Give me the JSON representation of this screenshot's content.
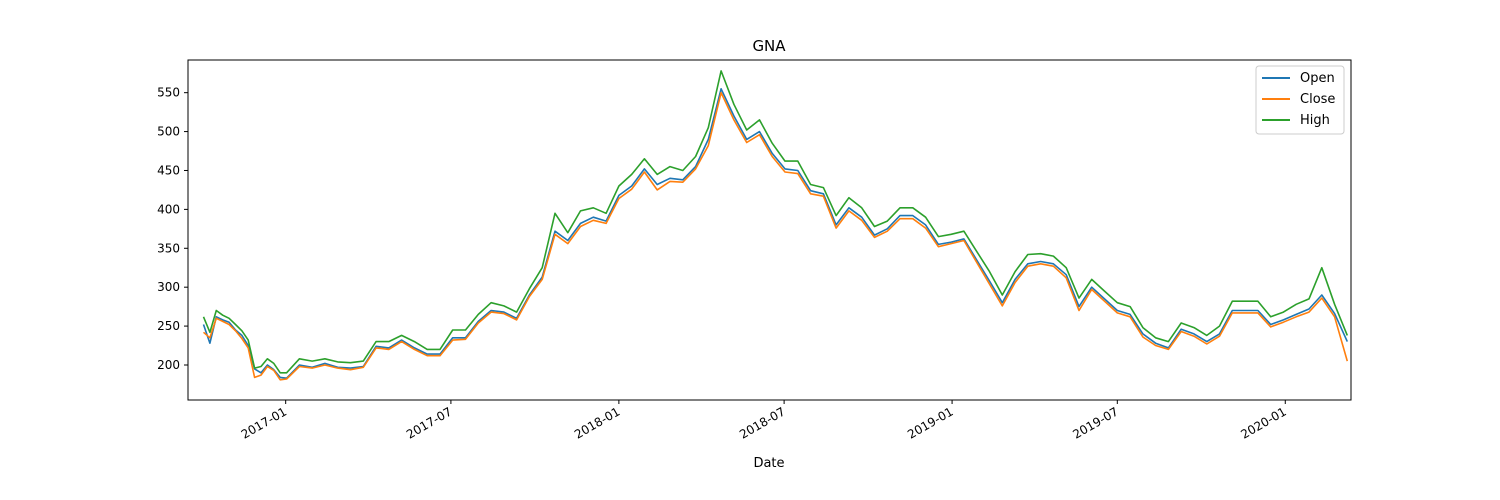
{
  "chart_data": {
    "type": "line",
    "title": "GNA",
    "xlabel": "Date",
    "ylabel": "",
    "x_range": [
      "2016-09-16",
      "2020-03-13"
    ],
    "ylim": [
      155,
      592
    ],
    "grid": false,
    "legend": "top-right",
    "y_ticks": [
      200,
      250,
      300,
      350,
      400,
      450,
      500,
      550
    ],
    "x_ticks": [
      "2017-01",
      "2017-07",
      "2018-01",
      "2018-07",
      "2019-01",
      "2019-07",
      "2020-01"
    ],
    "series": [
      {
        "name": "Open",
        "color": "#1f77b4"
      },
      {
        "name": "Close",
        "color": "#ff7f0e"
      },
      {
        "name": "High",
        "color": "#2ca02c"
      }
    ],
    "x": [
      "2016-10-03",
      "2016-10-10",
      "2016-10-17",
      "2016-10-24",
      "2016-10-31",
      "2016-11-07",
      "2016-11-14",
      "2016-11-21",
      "2016-11-28",
      "2016-12-05",
      "2016-12-12",
      "2016-12-19",
      "2016-12-26",
      "2017-01-02",
      "2017-01-16",
      "2017-01-30",
      "2017-02-13",
      "2017-02-27",
      "2017-03-13",
      "2017-03-27",
      "2017-04-10",
      "2017-04-24",
      "2017-05-08",
      "2017-05-22",
      "2017-06-05",
      "2017-06-19",
      "2017-07-03",
      "2017-07-17",
      "2017-07-31",
      "2017-08-14",
      "2017-08-28",
      "2017-09-11",
      "2017-09-25",
      "2017-10-09",
      "2017-10-23",
      "2017-11-06",
      "2017-11-20",
      "2017-12-04",
      "2017-12-18",
      "2018-01-01",
      "2018-01-15",
      "2018-01-29",
      "2018-02-12",
      "2018-02-26",
      "2018-03-12",
      "2018-03-26",
      "2018-04-09",
      "2018-04-23",
      "2018-05-07",
      "2018-05-21",
      "2018-06-04",
      "2018-06-18",
      "2018-07-02",
      "2018-07-16",
      "2018-07-30",
      "2018-08-13",
      "2018-08-27",
      "2018-09-10",
      "2018-09-24",
      "2018-10-08",
      "2018-10-22",
      "2018-11-05",
      "2018-11-19",
      "2018-12-03",
      "2018-12-17",
      "2018-12-31",
      "2019-01-14",
      "2019-01-28",
      "2019-02-11",
      "2019-02-25",
      "2019-03-11",
      "2019-03-25",
      "2019-04-08",
      "2019-04-22",
      "2019-05-06",
      "2019-05-20",
      "2019-06-03",
      "2019-06-17",
      "2019-07-01",
      "2019-07-15",
      "2019-07-29",
      "2019-08-12",
      "2019-08-26",
      "2019-09-09",
      "2019-09-23",
      "2019-10-07",
      "2019-10-21",
      "2019-11-04",
      "2019-11-18",
      "2019-12-02",
      "2019-12-16",
      "2019-12-30",
      "2020-01-13",
      "2020-01-27",
      "2020-02-10",
      "2020-02-24",
      "2020-03-09"
    ],
    "open": [
      252,
      228,
      262,
      258,
      255,
      245,
      238,
      225,
      195,
      190,
      200,
      194,
      184,
      183,
      200,
      197,
      202,
      197,
      196,
      198,
      224,
      222,
      232,
      222,
      214,
      214,
      235,
      235,
      256,
      270,
      268,
      260,
      290,
      313,
      372,
      360,
      382,
      390,
      385,
      418,
      430,
      452,
      432,
      440,
      438,
      455,
      490,
      555,
      520,
      490,
      500,
      472,
      452,
      450,
      424,
      420,
      380,
      402,
      390,
      367,
      375,
      392,
      392,
      380,
      355,
      358,
      362,
      335,
      308,
      280,
      310,
      330,
      333,
      330,
      316,
      275,
      300,
      285,
      270,
      265,
      240,
      228,
      222,
      246,
      240,
      230,
      240,
      270,
      270,
      270,
      252,
      258,
      265,
      272,
      290,
      266,
      230
    ],
    "close": [
      242,
      235,
      260,
      256,
      252,
      244,
      234,
      222,
      184,
      187,
      198,
      193,
      181,
      182,
      198,
      196,
      200,
      196,
      194,
      197,
      222,
      220,
      230,
      220,
      212,
      212,
      232,
      233,
      254,
      268,
      266,
      258,
      288,
      310,
      368,
      356,
      378,
      386,
      382,
      414,
      426,
      448,
      425,
      436,
      435,
      452,
      482,
      550,
      515,
      486,
      496,
      468,
      448,
      446,
      420,
      417,
      376,
      398,
      386,
      364,
      372,
      388,
      388,
      376,
      352,
      356,
      360,
      332,
      304,
      276,
      306,
      327,
      330,
      327,
      312,
      270,
      297,
      282,
      267,
      262,
      236,
      225,
      220,
      243,
      237,
      227,
      237,
      267,
      267,
      267,
      249,
      255,
      262,
      268,
      286,
      262,
      205
    ],
    "high": [
      262,
      242,
      270,
      264,
      260,
      252,
      244,
      232,
      196,
      198,
      208,
      202,
      190,
      190,
      208,
      205,
      208,
      204,
      203,
      205,
      230,
      230,
      238,
      230,
      220,
      220,
      245,
      245,
      265,
      280,
      276,
      268,
      298,
      325,
      395,
      370,
      398,
      402,
      395,
      430,
      445,
      465,
      445,
      455,
      450,
      468,
      505,
      578,
      535,
      502,
      515,
      485,
      462,
      462,
      432,
      428,
      392,
      415,
      402,
      378,
      385,
      402,
      402,
      390,
      365,
      368,
      372,
      346,
      320,
      290,
      320,
      342,
      343,
      340,
      325,
      286,
      310,
      295,
      280,
      275,
      248,
      235,
      230,
      254,
      248,
      238,
      250,
      282,
      282,
      282,
      262,
      268,
      278,
      285,
      325,
      278,
      238
    ]
  }
}
